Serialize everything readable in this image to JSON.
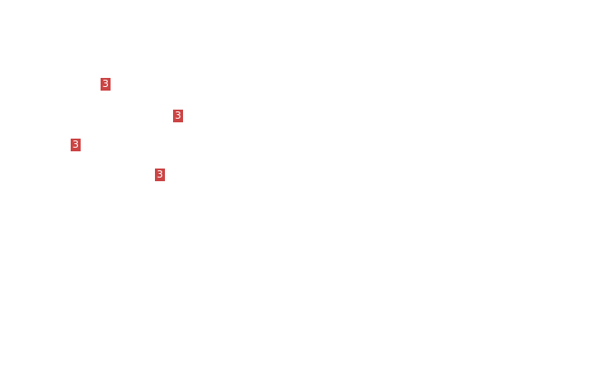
{
  "badge_color": "#cc4444",
  "badges": [
    {
      "label": "3"
    },
    {
      "label": "3"
    },
    {
      "label": "3"
    },
    {
      "label": "3"
    }
  ]
}
